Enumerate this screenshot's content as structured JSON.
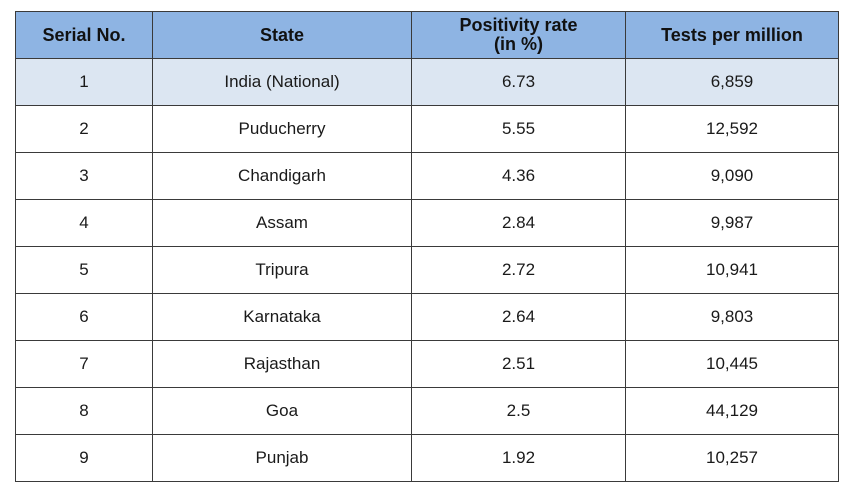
{
  "table": {
    "headers": {
      "serial": "Serial No.",
      "state": "State",
      "positivity_line1": "Positivity rate",
      "positivity_line2": "(in %)",
      "tests": "Tests per million"
    },
    "rows": [
      {
        "serial": "1",
        "state": "India (National)",
        "positivity": "6.73",
        "tests": "6,859"
      },
      {
        "serial": "2",
        "state": "Puducherry",
        "positivity": "5.55",
        "tests": "12,592"
      },
      {
        "serial": "3",
        "state": "Chandigarh",
        "positivity": "4.36",
        "tests": "9,090"
      },
      {
        "serial": "4",
        "state": "Assam",
        "positivity": "2.84",
        "tests": "9,987"
      },
      {
        "serial": "5",
        "state": "Tripura",
        "positivity": "2.72",
        "tests": "10,941"
      },
      {
        "serial": "6",
        "state": "Karnataka",
        "positivity": "2.64",
        "tests": "9,803"
      },
      {
        "serial": "7",
        "state": "Rajasthan",
        "positivity": "2.51",
        "tests": "10,445"
      },
      {
        "serial": "8",
        "state": "Goa",
        "positivity": "2.5",
        "tests": "44,129"
      },
      {
        "serial": "9",
        "state": "Punjab",
        "positivity": "1.92",
        "tests": "10,257"
      }
    ],
    "colors": {
      "header_bg": "#8eb4e3",
      "highlight_row_bg": "#dce6f2",
      "border": "#3a3a3a"
    }
  }
}
